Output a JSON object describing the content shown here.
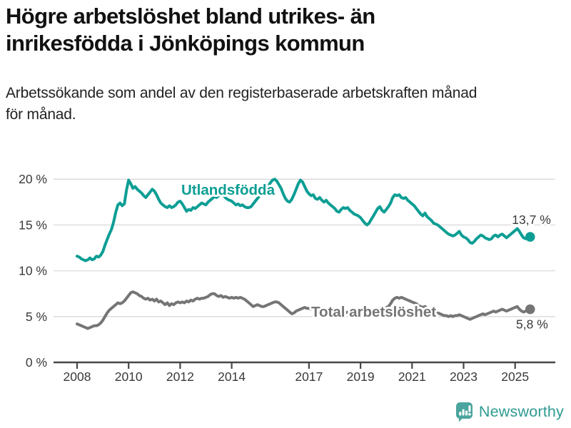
{
  "header": {
    "title_lines": [
      "Högre arbetslöshet bland utrikes- än",
      "inrikesfödda i Jönköpings kommun"
    ],
    "subtitle_lines": [
      "Arbetssökande som andel av den registerbaserade arbetskraften månad",
      "för månad."
    ]
  },
  "footer": {
    "brand": "Newsworthy",
    "brand_color": "#2e9a92",
    "icon_color": "#4ba49e"
  },
  "chart_data": {
    "type": "line",
    "title": "Högre arbetslöshet bland utrikes- än inrikesfödda i Jönköpings kommun",
    "subtitle": "Arbetssökande som andel av den registerbaserade arbetskraften månad för månad.",
    "x_start_year": 2008,
    "points_per_month": 1,
    "x_axis": {
      "tick_years": [
        2008,
        2010,
        2012,
        2014,
        2017,
        2019,
        2021,
        2023,
        2025
      ]
    },
    "y_axis": {
      "ticks": [
        0,
        5,
        10,
        15,
        20
      ],
      "tick_labels": [
        "0 %",
        "5 %",
        "10 %",
        "15 %",
        "20 %"
      ],
      "range": [
        0,
        21
      ]
    },
    "grid": "horizontal",
    "legend": "inline-labels",
    "series": [
      {
        "name": "Utlandsfödda",
        "color": "#0c9e94",
        "end_label": "13,7 %",
        "end_value": 13.7,
        "values": [
          11.6,
          11.5,
          11.3,
          11.2,
          11.1,
          11.2,
          11.4,
          11.2,
          11.3,
          11.6,
          11.5,
          11.7,
          12.1,
          12.8,
          13.4,
          14.0,
          14.5,
          15.3,
          16.4,
          17.2,
          17.4,
          17.1,
          17.3,
          18.8,
          19.9,
          19.5,
          19.0,
          19.2,
          18.9,
          18.7,
          18.5,
          18.2,
          18.0,
          18.3,
          18.6,
          18.9,
          18.7,
          18.3,
          17.8,
          17.4,
          17.2,
          17.0,
          16.9,
          17.1,
          16.9,
          17.0,
          17.2,
          17.5,
          17.6,
          17.3,
          16.9,
          16.5,
          16.7,
          16.6,
          16.9,
          16.8,
          17.0,
          17.2,
          17.4,
          17.3,
          17.2,
          17.5,
          17.7,
          17.9,
          18.1,
          18.0,
          18.2,
          18.3,
          18.3,
          18.0,
          17.8,
          17.7,
          17.6,
          17.4,
          17.2,
          17.3,
          17.1,
          17.2,
          17.0,
          16.9,
          16.9,
          17.0,
          17.3,
          17.6,
          17.9,
          18.2,
          18.4,
          18.7,
          18.9,
          19.2,
          19.6,
          19.9,
          20.0,
          19.8,
          19.4,
          19.0,
          18.4,
          17.9,
          17.6,
          17.5,
          17.8,
          18.3,
          18.9,
          19.5,
          19.9,
          19.7,
          19.2,
          18.7,
          18.4,
          18.2,
          18.3,
          17.9,
          17.8,
          18.0,
          17.7,
          17.5,
          17.7,
          17.4,
          17.2,
          17.0,
          16.8,
          16.5,
          16.4,
          16.7,
          16.9,
          16.8,
          16.9,
          16.6,
          16.4,
          16.2,
          16.1,
          16.0,
          15.8,
          15.5,
          15.2,
          15.0,
          15.2,
          15.6,
          16.0,
          16.4,
          16.8,
          17.0,
          16.6,
          16.4,
          16.7,
          17.0,
          17.4,
          18.0,
          18.3,
          18.2,
          18.3,
          18.0,
          17.9,
          18.0,
          17.7,
          17.5,
          17.3,
          17.1,
          16.8,
          16.5,
          16.2,
          16.0,
          16.3,
          15.9,
          15.7,
          15.5,
          15.2,
          15.1,
          15.0,
          14.8,
          14.6,
          14.4,
          14.2,
          14.0,
          13.9,
          13.8,
          13.9,
          14.1,
          14.3,
          13.9,
          13.7,
          13.6,
          13.4,
          13.1,
          13.0,
          13.2,
          13.5,
          13.7,
          13.9,
          13.8,
          13.6,
          13.5,
          13.4,
          13.5,
          13.8,
          13.9,
          13.7,
          13.9,
          14.0,
          13.8,
          13.6,
          13.8,
          14.0,
          14.2,
          14.4,
          14.6,
          14.3,
          13.9,
          13.6,
          13.5,
          13.6,
          13.7
        ]
      },
      {
        "name": "Total arbetslöshet",
        "color": "#757575",
        "end_label": "5,8 %",
        "end_value": 5.8,
        "values": [
          4.2,
          4.1,
          4.0,
          3.9,
          3.8,
          3.7,
          3.8,
          3.9,
          4.0,
          4.0,
          4.1,
          4.3,
          4.6,
          5.0,
          5.4,
          5.7,
          5.9,
          6.1,
          6.3,
          6.5,
          6.4,
          6.5,
          6.7,
          7.0,
          7.3,
          7.6,
          7.7,
          7.6,
          7.5,
          7.3,
          7.2,
          7.0,
          6.9,
          7.0,
          6.8,
          6.9,
          6.7,
          6.9,
          6.6,
          6.7,
          6.5,
          6.3,
          6.5,
          6.2,
          6.4,
          6.3,
          6.5,
          6.6,
          6.5,
          6.6,
          6.5,
          6.7,
          6.6,
          6.8,
          6.7,
          6.9,
          7.0,
          6.9,
          7.0,
          7.0,
          7.1,
          7.2,
          7.4,
          7.5,
          7.5,
          7.3,
          7.2,
          7.3,
          7.1,
          7.2,
          7.1,
          7.0,
          7.1,
          7.0,
          7.1,
          7.0,
          7.1,
          7.0,
          6.9,
          6.7,
          6.5,
          6.3,
          6.1,
          6.2,
          6.3,
          6.2,
          6.1,
          6.1,
          6.2,
          6.3,
          6.4,
          6.5,
          6.6,
          6.6,
          6.5,
          6.3,
          6.1,
          5.9,
          5.7,
          5.5,
          5.3,
          5.4,
          5.6,
          5.7,
          5.8,
          5.9,
          6.0,
          5.9,
          5.9,
          5.8,
          5.9,
          5.8,
          5.7,
          5.8,
          5.7,
          5.6,
          5.7,
          5.6,
          5.5,
          5.5,
          5.4,
          5.3,
          5.3,
          5.4,
          5.3,
          5.4,
          5.5,
          5.4,
          5.3,
          5.4,
          5.3,
          5.4,
          5.4,
          5.5,
          5.4,
          5.5,
          5.6,
          5.7,
          5.8,
          5.7,
          5.8,
          5.9,
          5.8,
          5.9,
          6.0,
          6.1,
          6.4,
          6.8,
          7.0,
          7.1,
          7.0,
          7.1,
          7.0,
          6.9,
          6.8,
          6.7,
          6.6,
          6.5,
          6.4,
          6.2,
          6.1,
          6.0,
          6.1,
          5.9,
          5.8,
          5.7,
          5.6,
          5.5,
          5.4,
          5.3,
          5.2,
          5.1,
          5.1,
          5.0,
          5.1,
          5.0,
          5.1,
          5.1,
          5.2,
          5.1,
          5.0,
          4.9,
          4.8,
          4.7,
          4.8,
          4.9,
          5.0,
          5.1,
          5.2,
          5.3,
          5.2,
          5.3,
          5.4,
          5.5,
          5.6,
          5.5,
          5.6,
          5.7,
          5.8,
          5.7,
          5.6,
          5.7,
          5.8,
          5.9,
          6.0,
          6.1,
          5.8,
          5.6,
          5.5,
          5.6,
          5.7,
          5.8
        ]
      }
    ],
    "colors": {
      "grid": "#dadada",
      "axis": "#474747",
      "tick_text": "#3a3a3a"
    }
  }
}
